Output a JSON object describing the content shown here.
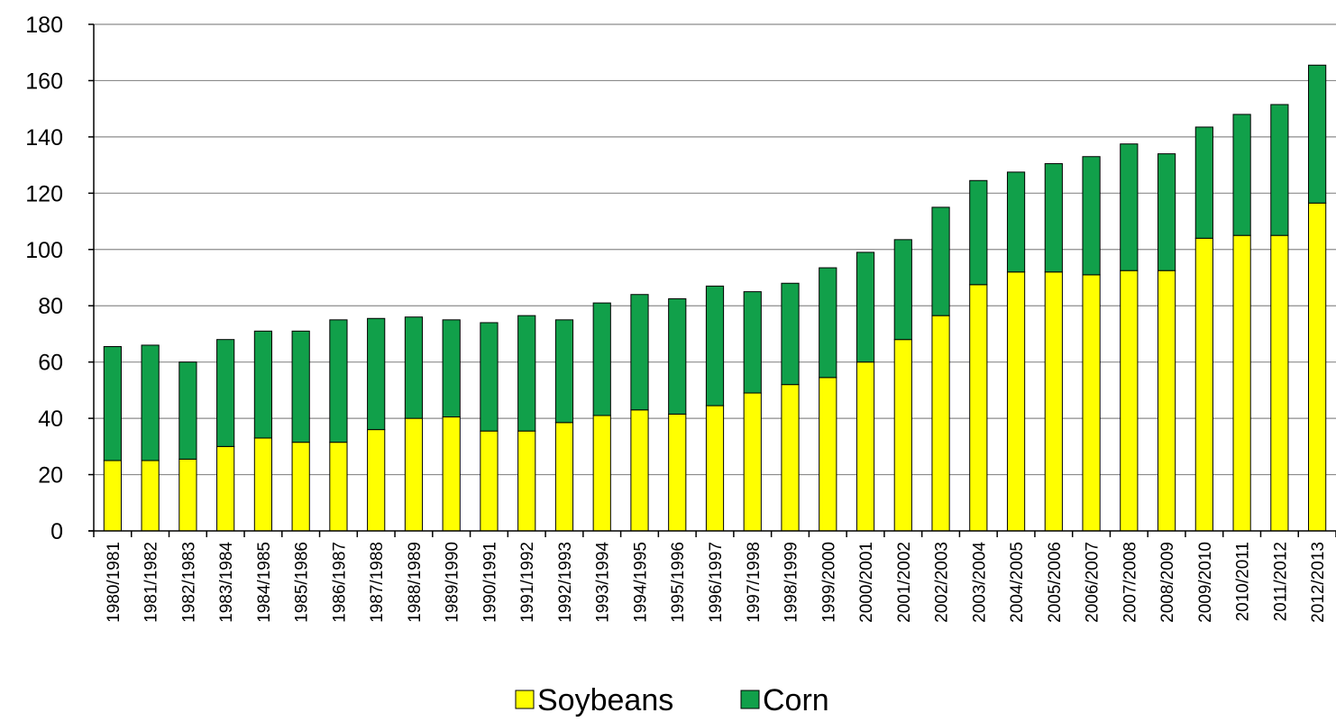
{
  "chart_data": {
    "type": "bar",
    "stacked": true,
    "title": "",
    "xlabel": "",
    "ylabel": "",
    "ylim": [
      0,
      180
    ],
    "yticks": [
      0,
      20,
      40,
      60,
      80,
      100,
      120,
      140,
      160,
      180
    ],
    "grid": "horizontal",
    "legend_position": "bottom",
    "categories": [
      "1980/1981",
      "1981/1982",
      "1982/1983",
      "1983/1984",
      "1984/1985",
      "1985/1986",
      "1986/1987",
      "1987/1988",
      "1988/1989",
      "1989/1990",
      "1990/1991",
      "1991/1992",
      "1992/1993",
      "1993/1994",
      "1994/1995",
      "1995/1996",
      "1996/1997",
      "1997/1998",
      "1998/1999",
      "1999/2000",
      "2000/2001",
      "2001/2002",
      "2002/2003",
      "2003/2004",
      "2004/2005",
      "2005/2006",
      "2006/2007",
      "2007/2008",
      "2008/2009",
      "2009/2010",
      "2010/2011",
      "2011/2012",
      "2012/2013"
    ],
    "series": [
      {
        "name": "Soybeans",
        "color": "#ffff00",
        "values": [
          25,
          25,
          25.5,
          30,
          33,
          31.5,
          31.5,
          36,
          40,
          40.5,
          35.5,
          35.5,
          38.5,
          41,
          43,
          41.5,
          44.5,
          49,
          52,
          54.5,
          60,
          68,
          76.5,
          87.5,
          92,
          92,
          91,
          92.5,
          92.5,
          104,
          105,
          105,
          116.5
        ]
      },
      {
        "name": "Corn",
        "color": "#11a04a",
        "values": [
          40.5,
          41,
          34.5,
          38,
          38,
          39.5,
          43.5,
          39.5,
          36,
          34.5,
          38.5,
          41,
          36.5,
          40,
          41,
          41,
          42.5,
          36,
          36,
          39,
          39,
          35.5,
          38.5,
          37,
          35.5,
          38.5,
          42,
          45,
          41.5,
          39.5,
          43,
          46.5,
          49
        ]
      }
    ]
  }
}
